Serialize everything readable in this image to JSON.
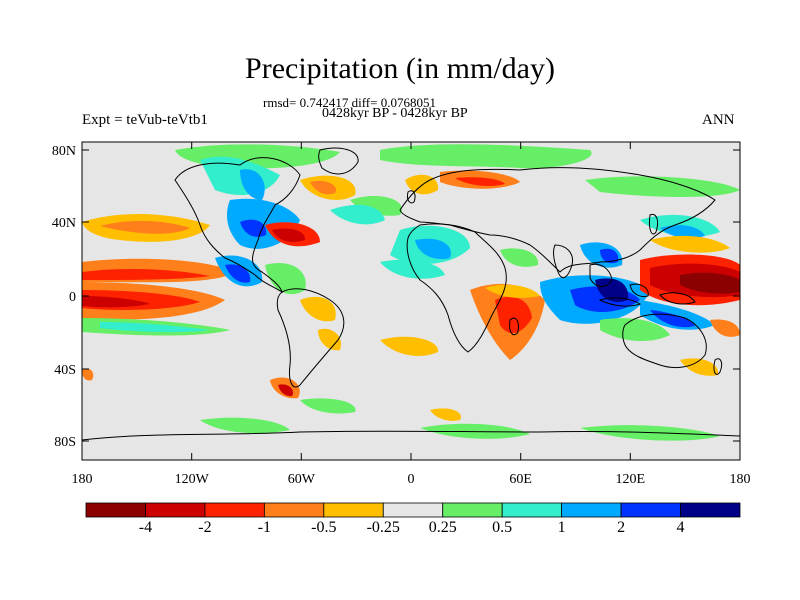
{
  "figure": {
    "title": "Precipitation (in mm/day)",
    "stats": "rmsd= 0.742417 diff= 0.0768051",
    "period": "0428kyr BP - 0428kyr BP",
    "experiment": "Expt = teVub-teVtb1",
    "season": "ANN"
  },
  "map": {
    "projection": "cylindrical equidistant",
    "lat_ticks": [
      "80N",
      "40N",
      "0",
      "40S",
      "80S"
    ],
    "lon_ticks": [
      "180",
      "120W",
      "60W",
      "0",
      "60E",
      "120E",
      "180"
    ],
    "background_color": "#e6e6e6"
  },
  "colorbar": {
    "labels": [
      "-4",
      "-2",
      "-1",
      "-0.5",
      "-0.25",
      "0.25",
      "0.5",
      "1",
      "2",
      "4"
    ],
    "colors": [
      "#8b0000",
      "#cc0000",
      "#ff2200",
      "#ff7f1a",
      "#ffbf00",
      "#e6e6e6",
      "#66ee66",
      "#33eecc",
      "#00aaff",
      "#0033ff",
      "#000088"
    ]
  }
}
